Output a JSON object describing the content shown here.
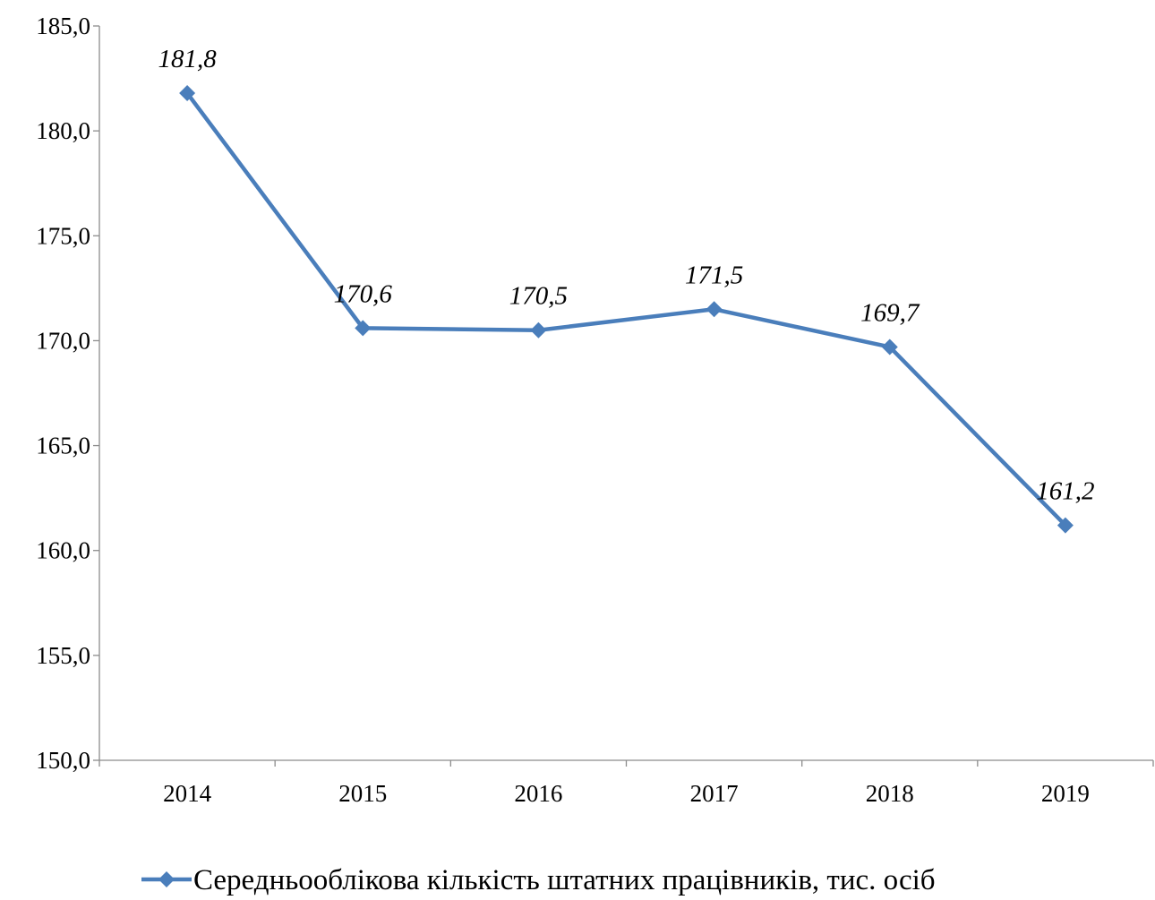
{
  "chart_data": {
    "type": "line",
    "categories": [
      "2014",
      "2015",
      "2016",
      "2017",
      "2018",
      "2019"
    ],
    "series": [
      {
        "name": "Середньооблікова кількість штатних працівників, тис. осіб",
        "values": [
          181.8,
          170.6,
          170.5,
          171.5,
          169.7,
          161.2
        ],
        "value_labels": [
          "181,8",
          "170,6",
          "170,5",
          "171,5",
          "169,7",
          "161,2"
        ],
        "color": "#4a7ebb"
      }
    ],
    "y_ticks": [
      150,
      155,
      160,
      165,
      170,
      175,
      180,
      185
    ],
    "y_tick_labels": [
      "150,0",
      "155,0",
      "160,0",
      "165,0",
      "170,0",
      "175,0",
      "180,0",
      "185,0"
    ],
    "ylim": [
      150,
      185
    ],
    "grid": false,
    "legend_position": "bottom",
    "title": "",
    "xlabel": "",
    "ylabel": ""
  }
}
